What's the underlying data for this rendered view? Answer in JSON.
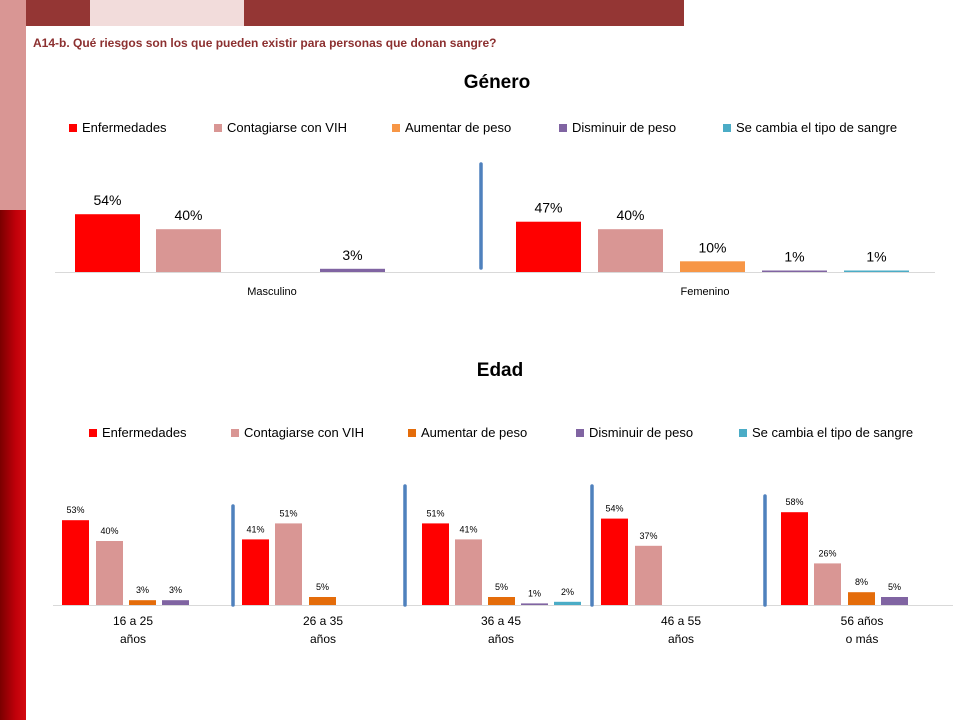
{
  "question": "A14-b. Qué riesgos son los que pueden existir para personas que donan sangre?",
  "colors": {
    "deco_dark": "#943634",
    "deco_light": "#f2dcdb",
    "deco_mid": "#d99694",
    "deco_side_dark": "#c0000a"
  },
  "chart_data": [
    {
      "type": "bar",
      "title": "Género",
      "series": [
        {
          "name": "Enfermedades",
          "color": "#ff0000",
          "values": [
            54,
            47
          ],
          "labels": [
            "54%",
            "47%"
          ]
        },
        {
          "name": "Contagiarse con VIH",
          "color": "#d99694",
          "values": [
            40,
            40
          ],
          "labels": [
            "40%",
            "40%"
          ]
        },
        {
          "name": "Aumentar de peso",
          "color": "#f79646",
          "values": [
            null,
            10
          ],
          "labels": [
            "",
            "10%"
          ]
        },
        {
          "name": "Disminuir de peso",
          "color": "#8064a2",
          "values": [
            3,
            1
          ],
          "labels": [
            "3%",
            "1%"
          ]
        },
        {
          "name": "Se cambia el tipo de sangre",
          "color": "#4bacc6",
          "values": [
            null,
            1
          ],
          "labels": [
            "",
            "1%"
          ]
        }
      ],
      "categories": [
        {
          "lines": [
            "Masculino"
          ]
        },
        {
          "lines": [
            "Femenino"
          ]
        }
      ],
      "legend": "top"
    },
    {
      "type": "bar",
      "title": "Edad",
      "series": [
        {
          "name": "Enfermedades",
          "color": "#ff0000",
          "values": [
            53,
            41,
            51,
            54,
            58
          ],
          "labels": [
            "53%",
            "41%",
            "51%",
            "54%",
            "58%"
          ]
        },
        {
          "name": "Contagiarse con VIH",
          "color": "#d99694",
          "values": [
            40,
            51,
            41,
            37,
            26
          ],
          "labels": [
            "40%",
            "51%",
            "41%",
            "37%",
            "26%"
          ]
        },
        {
          "name": "Aumentar de peso",
          "color": "#e46c0a",
          "values": [
            3,
            5,
            5,
            null,
            8
          ],
          "labels": [
            "3%",
            "5%",
            "5%",
            "",
            "8%"
          ]
        },
        {
          "name": "Disminuir de peso",
          "color": "#8064a2",
          "values": [
            3,
            null,
            1,
            null,
            5
          ],
          "labels": [
            "3%",
            "",
            "1%",
            "",
            "5%"
          ]
        },
        {
          "name": "Se cambia el tipo de sangre",
          "color": "#4bacc6",
          "values": [
            null,
            null,
            2,
            null,
            null
          ],
          "labels": [
            "",
            "",
            "2%",
            "",
            ""
          ]
        }
      ],
      "categories": [
        {
          "lines": [
            "16 a 25",
            "años"
          ]
        },
        {
          "lines": [
            "26 a 35",
            "años"
          ]
        },
        {
          "lines": [
            "36 a 45",
            "años"
          ]
        },
        {
          "lines": [
            "46 a 55",
            "años"
          ]
        },
        {
          "lines": [
            "56 años",
            "o más"
          ]
        }
      ],
      "legend": "top"
    }
  ]
}
